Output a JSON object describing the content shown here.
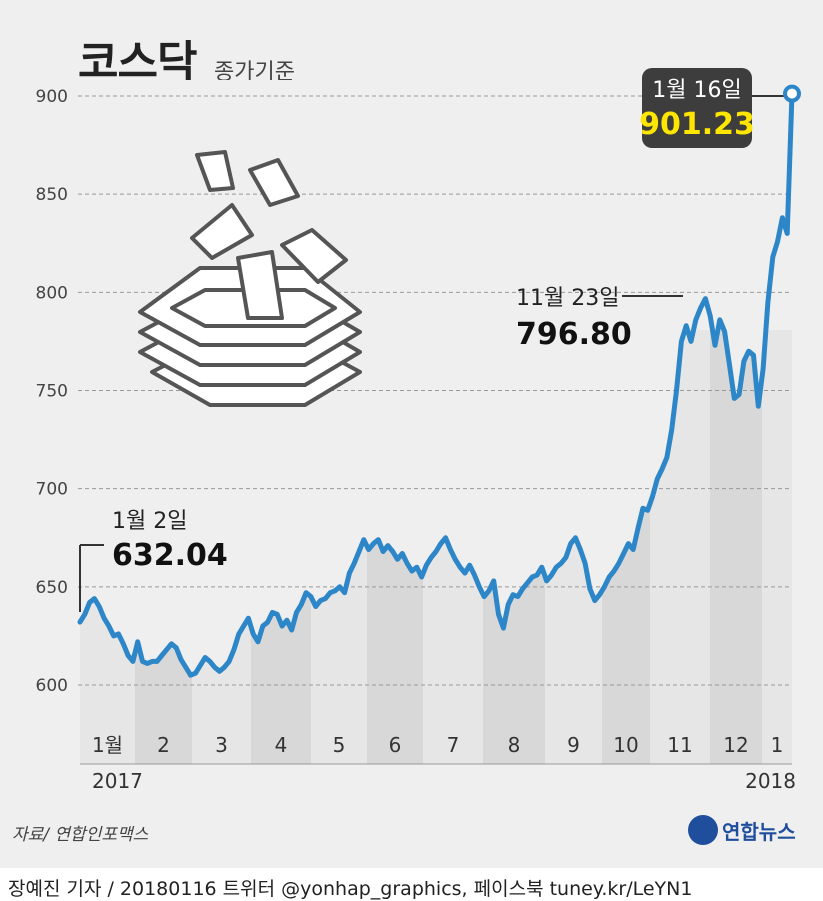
{
  "header": {
    "title": "코스닥",
    "subtitle": "종가기준"
  },
  "source": "자료/ 연합인포맥스",
  "brand": "연합뉴스",
  "credit": "장예진 기자 / 20180116 트위터 @yonhap_graphics, 페이스북 tuney.kr/LeYN1",
  "colors": {
    "line": "#2d86c8",
    "band_light": "#e6e6e6",
    "band_dark": "#d8d8d8",
    "callout_bg": "#3d3d3d",
    "callout_value": "#ffe600",
    "brand": "#1f4f9c"
  },
  "icon": "box-with-flying-papers-icon",
  "chart_data": {
    "type": "line",
    "title": "코스닥",
    "subtitle": "종가기준",
    "ylim": [
      560,
      910
    ],
    "yticks": [
      600,
      650,
      700,
      750,
      800,
      850,
      900
    ],
    "month_labels": [
      "1월",
      "2",
      "3",
      "4",
      "5",
      "6",
      "7",
      "8",
      "9",
      "10",
      "11",
      "12",
      "1"
    ],
    "year_labels": [
      "2017",
      "2018"
    ],
    "grid": "horizontal-dashed",
    "series": [
      {
        "values": [
          632.04,
          636,
          642,
          644,
          640,
          634,
          630,
          625,
          626,
          621,
          615,
          612,
          622,
          612,
          611,
          612,
          612,
          615,
          618,
          621,
          619,
          613,
          609,
          605,
          606,
          610,
          614,
          612,
          609,
          607,
          609,
          612,
          618,
          626,
          630,
          634,
          626,
          622,
          630,
          632,
          637,
          636,
          630,
          633,
          628,
          637,
          641,
          647,
          645,
          640,
          643,
          644,
          647,
          648,
          650,
          647,
          657,
          662,
          668,
          674,
          669,
          672,
          674,
          668,
          671,
          668,
          664,
          667,
          662,
          658,
          660,
          655,
          661,
          665,
          668,
          672,
          675,
          669,
          664,
          660,
          657,
          661,
          656,
          650,
          645,
          648,
          653,
          636,
          629,
          641,
          646,
          645,
          649,
          652,
          655,
          656,
          660,
          653,
          656,
          660,
          662,
          665,
          672,
          675,
          669,
          662,
          649,
          643,
          646,
          650,
          655,
          658,
          662,
          667,
          672,
          669,
          680,
          690,
          689,
          696,
          705,
          710,
          716,
          730,
          750,
          775,
          783,
          775,
          786,
          792,
          796.8,
          788,
          773,
          786,
          780,
          763,
          746,
          748,
          765,
          770,
          768,
          742,
          761,
          795,
          818,
          826,
          838,
          830,
          901.23
        ]
      }
    ],
    "annotations": [
      {
        "label": "1월 2일",
        "value": "632.04"
      },
      {
        "label": "11월 23일",
        "value": "796.80"
      },
      {
        "label": "1월 16일",
        "value": "901.23"
      }
    ]
  }
}
